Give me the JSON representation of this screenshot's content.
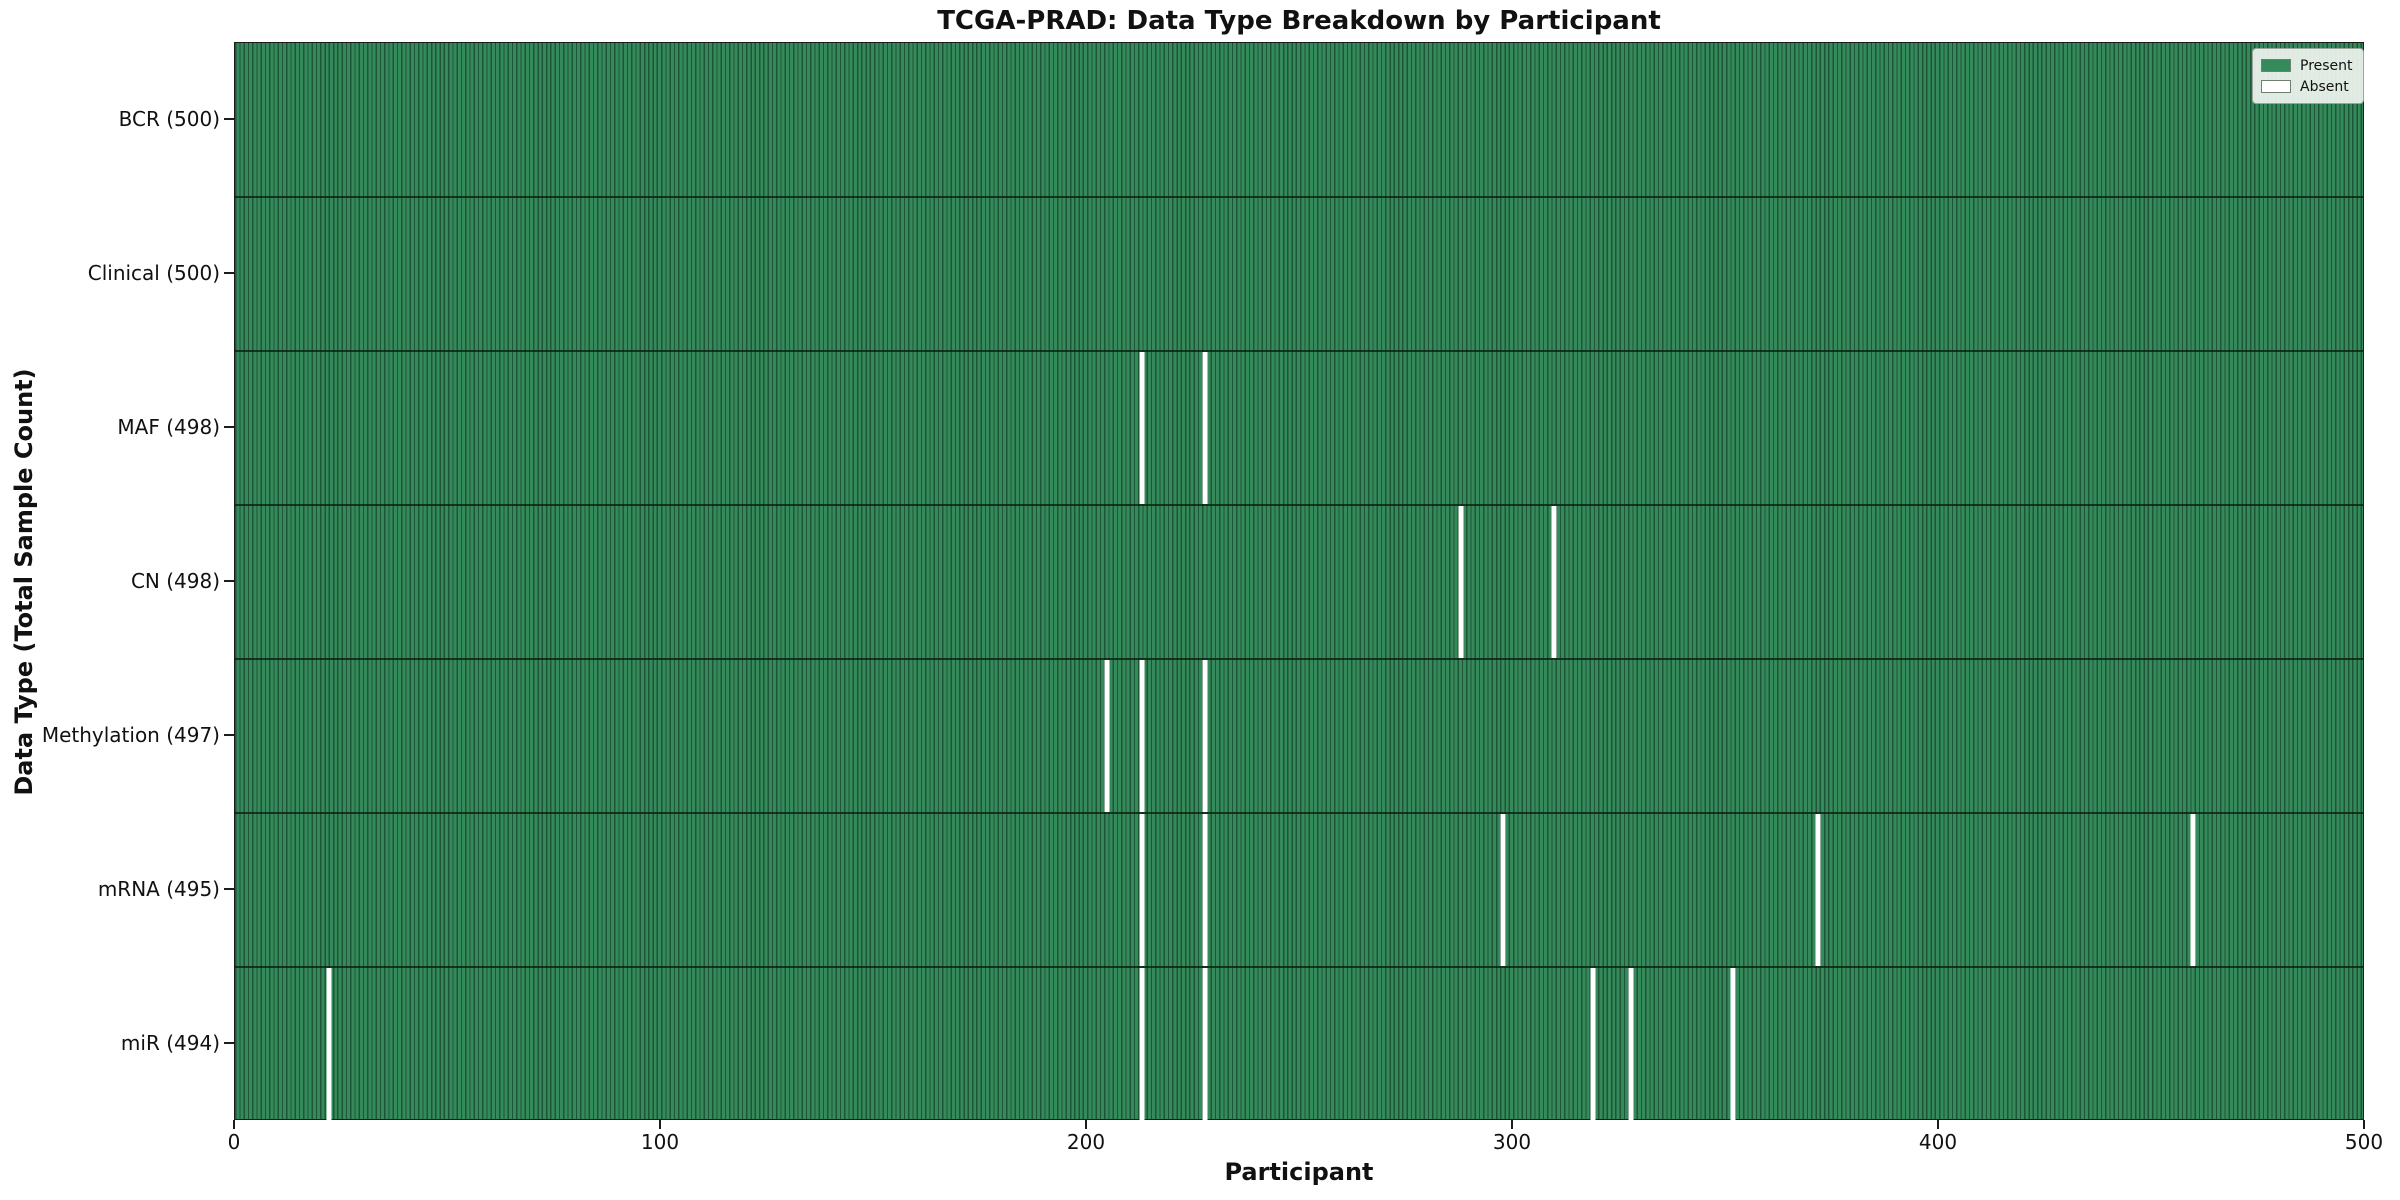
{
  "window": {
    "title": "TCGA-PRAD: Data Type Breakdown by Participant"
  },
  "chart_data": {
    "type": "heatmap",
    "title": "TCGA-PRAD: Data Type Breakdown by Participant",
    "xlabel": "Participant",
    "ylabel": "Data Type (Total Sample Count)",
    "xlim": [
      0,
      500
    ],
    "x_ticks": [
      0,
      100,
      200,
      300,
      400,
      500
    ],
    "n_participants": 500,
    "grid": false,
    "legend_position": "upper right",
    "legend": [
      {
        "label": "Present",
        "color": "#348a5a"
      },
      {
        "label": "Absent",
        "color": "#ffffff"
      }
    ],
    "rows": [
      {
        "label": "BCR (500)",
        "data_type": "BCR",
        "total": 500,
        "absent_participants": []
      },
      {
        "label": "Clinical (500)",
        "data_type": "Clinical",
        "total": 500,
        "absent_participants": []
      },
      {
        "label": "MAF (498)",
        "data_type": "MAF",
        "total": 498,
        "absent_participants": [
          213,
          228
        ]
      },
      {
        "label": "CN (498)",
        "data_type": "CN",
        "total": 498,
        "absent_participants": [
          288,
          310
        ]
      },
      {
        "label": "Methylation (497)",
        "data_type": "Methylation",
        "total": 497,
        "absent_participants": [
          205,
          213,
          228
        ]
      },
      {
        "label": "mRNA (495)",
        "data_type": "mRNA",
        "total": 495,
        "absent_participants": [
          213,
          228,
          298,
          372,
          460
        ]
      },
      {
        "label": "miR (494)",
        "data_type": "miR",
        "total": 494,
        "absent_participants": [
          22,
          213,
          228,
          319,
          328,
          352
        ]
      }
    ],
    "colors": {
      "present_fill": "#348a5a",
      "bar_edge": "#1e5537",
      "absent_fill": "#ffffff",
      "row_divider": "#13291a",
      "axis": "#1c1c1c",
      "text": "#111111",
      "legend_background": "#f0f5f0"
    }
  }
}
